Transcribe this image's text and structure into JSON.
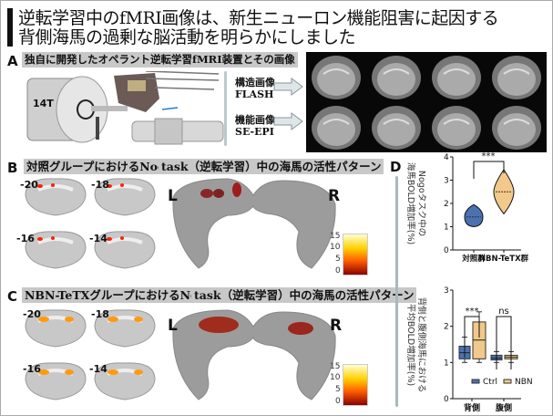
{
  "title": {
    "line1": "逆転学習中のfMRI画像は、新生ニューロン機能阻害に起因する",
    "line2": "背側海馬の過剰な脳活動を明らかにしました"
  },
  "panel_a": {
    "label": "A",
    "heading": "独自に開発したオペラント逆転学習fMRI装置とその画像",
    "magnet_label": "14T",
    "structural": {
      "line1": "構造画像",
      "line2": "FLASH"
    },
    "functional": {
      "line1": "機能画像",
      "line2": "SE-EPI"
    }
  },
  "panel_b": {
    "label": "B",
    "heading_part1": "対照グループにおけるNogo",
    "heading_part2": "task（逆転学習）中の海馬の活性パターン",
    "slices": [
      "-20",
      "-18",
      "-16",
      "-14"
    ],
    "left": "L",
    "right": "R",
    "colorbar_ticks": [
      "15",
      "10",
      "5",
      "0"
    ]
  },
  "panel_c": {
    "label": "C",
    "heading_part1": "NBN-TeTXグループにおけるNogo",
    "heading_part2": "task（逆転学習）中の海馬の活性パターン",
    "slices": [
      "-20",
      "-18",
      "-16",
      "-14"
    ],
    "left": "L",
    "right": "R",
    "colorbar_ticks": [
      "15",
      "10",
      "5",
      "0"
    ]
  },
  "panel_d": {
    "label": "D"
  },
  "colors": {
    "ctrl": "#4a72b0",
    "nbn": "#f2c98a",
    "activation_low": "#8b0000",
    "activation_high": "#ffff80"
  },
  "chart_data": [
    {
      "type": "violin",
      "ylabel": "Nogoタスク中の\n海馬BOLD増加率(%)",
      "ylabel_line1": "Nogoタスク中の",
      "ylabel_line2": "海馬BOLD増加率(%)",
      "categories": [
        "対照群",
        "NBN-TeTX群"
      ],
      "ylim": [
        0,
        4
      ],
      "yticks": [
        "0",
        "1",
        "2",
        "3",
        "4"
      ],
      "series": [
        {
          "category": "対照群",
          "min": 1.0,
          "median": 1.42,
          "max": 1.95
        },
        {
          "category": "NBN-TeTX群",
          "min": 1.55,
          "median": 2.5,
          "max": 3.45
        }
      ],
      "annotations": [
        "***"
      ]
    },
    {
      "type": "box",
      "ylabel_line1": "背側と腹側海馬における",
      "ylabel_line2": "平均BOLD増加率(%)",
      "categories": [
        "背側",
        "腹側"
      ],
      "ylim": [
        0,
        3
      ],
      "yticks": [
        "0",
        "1",
        "2",
        "3"
      ],
      "legend": {
        "position": "bottom-right",
        "entries": [
          "Ctrl",
          "NBN"
        ]
      },
      "series": [
        {
          "name": "Ctrl",
          "boxes": [
            {
              "min": 1.0,
              "q1": 1.1,
              "median": 1.27,
              "q3": 1.45,
              "max": 1.7
            },
            {
              "min": 1.0,
              "q1": 1.07,
              "median": 1.12,
              "q3": 1.2,
              "max": 1.3
            }
          ]
        },
        {
          "name": "NBN",
          "boxes": [
            {
              "min": 1.0,
              "q1": 1.1,
              "median": 1.62,
              "q3": 2.12,
              "max": 2.4
            },
            {
              "min": 1.0,
              "q1": 1.1,
              "median": 1.15,
              "q3": 1.2,
              "max": 1.3
            }
          ]
        }
      ],
      "annotations": [
        "***",
        "ns"
      ]
    }
  ]
}
